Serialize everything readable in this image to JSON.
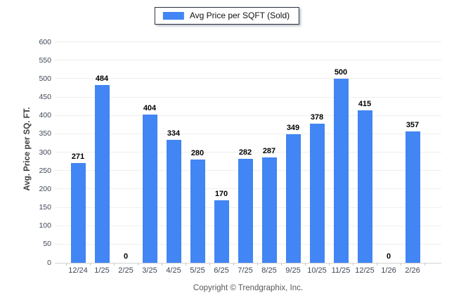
{
  "legend": {
    "label": "Avg Price per SQFT (Sold)"
  },
  "y_axis": {
    "title": "Avg. Price per SQ. FT."
  },
  "footer": {
    "copyright": "Copyright © Trendgraphix, Inc."
  },
  "colors": {
    "bar": "#4285F4",
    "grid": "#F0EFED",
    "axis_line": "#D4D4D4",
    "tick": "#C9C9C9",
    "axis_text": "#3E4757",
    "value_label": "#000000",
    "y_title": "#3D3D3D",
    "copyright_text": "#58595B"
  },
  "chart_data": {
    "type": "bar",
    "title": "",
    "series_name": "Avg Price per SQFT (Sold)",
    "categories": [
      "12/24",
      "1/25",
      "2/25",
      "3/25",
      "4/25",
      "5/25",
      "6/25",
      "7/25",
      "8/25",
      "9/25",
      "10/25",
      "11/25",
      "12/25",
      "1/26",
      "2/26"
    ],
    "values": [
      271,
      484,
      0,
      404,
      334,
      280,
      170,
      282,
      287,
      349,
      378,
      500,
      415,
      0,
      357
    ],
    "xlabel": "",
    "ylabel": "Avg. Price per SQ. FT.",
    "ylim": [
      0,
      600
    ],
    "ytick_step": 50,
    "grid": true,
    "legend_position": "top-center",
    "value_labels": true
  }
}
